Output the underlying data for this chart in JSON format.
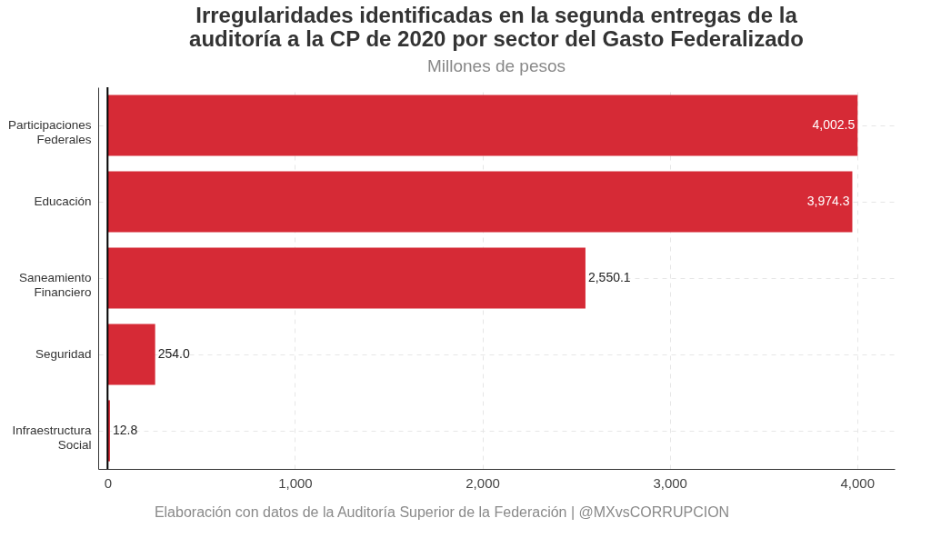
{
  "chart_data": {
    "type": "bar",
    "orientation": "horizontal",
    "title": "Irregularidades identificadas en la segunda entregas de la auditoría a la CP de 2020 por sector del Gasto Federalizado",
    "subtitle": "Millones de pesos",
    "categories": [
      "Participaciones Federales",
      "Educación",
      "Saneamiento Financiero",
      "Seguridad",
      "Infraestructura Social"
    ],
    "values": [
      4002.5,
      3974.3,
      2550.1,
      254.0,
      12.8
    ],
    "color": "#d62a36",
    "value_labels": [
      "4,002.5",
      "3,974.3",
      "2,550.1",
      "254.0",
      "12.8"
    ],
    "xlim": [
      -50,
      4200
    ],
    "xticks": [
      0,
      {
        "value": 1000,
        "label": "1,000"
      },
      {
        "value": 2000,
        "label": "2,000"
      },
      {
        "value": 3000,
        "label": "3,000"
      },
      {
        "value": 4000,
        "label": "4,000"
      }
    ],
    "grid": true,
    "ref_lines": [
      {
        "axis": "x",
        "value": 0,
        "color": "#000000"
      }
    ],
    "annotations": [
      "Elaboración con datos de la Auditoría Superior de la Federación | @MXvsCORRUPCION"
    ]
  }
}
